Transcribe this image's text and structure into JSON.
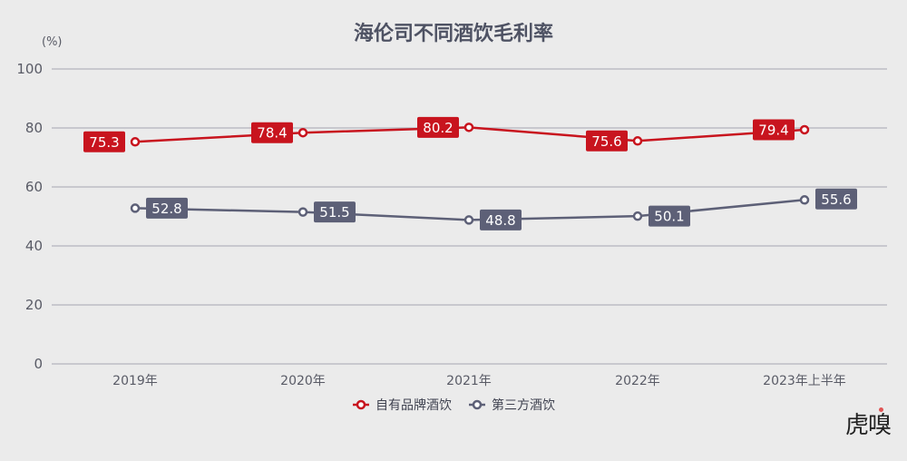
{
  "title": "海伦司不同酒饮毛利率",
  "unit": "(%)",
  "colors": {
    "series1": "#c8141e",
    "series2": "#5d6077",
    "grid": "#b4b4bc",
    "background": "#ebebeb"
  },
  "logo": "虎嗅",
  "legend": [
    {
      "name": "自有品牌酒饮",
      "color": "#c8141e"
    },
    {
      "name": "第三方酒饮",
      "color": "#5d6077"
    }
  ],
  "chart_data": {
    "type": "line",
    "title": "海伦司不同酒饮毛利率",
    "xlabel": "",
    "ylabel": "(%)",
    "ylim": [
      0,
      100
    ],
    "yticks": [
      0,
      20,
      40,
      60,
      80,
      100
    ],
    "grid": true,
    "legend_position": "bottom",
    "categories": [
      "2019年",
      "2020年",
      "2021年",
      "2022年",
      "2023年上半年"
    ],
    "series": [
      {
        "name": "自有品牌酒饮",
        "values": [
          75.3,
          78.4,
          80.2,
          75.6,
          79.4
        ],
        "labels": [
          "75.3",
          "78.4",
          "80.2",
          "75.6",
          "79.4"
        ],
        "label_position": "left"
      },
      {
        "name": "第三方酒饮",
        "values": [
          52.8,
          51.5,
          48.8,
          50.1,
          55.6
        ],
        "labels": [
          "52.8",
          "51.5",
          "48.8",
          "50.1",
          "55.6"
        ],
        "label_position": "right"
      }
    ]
  }
}
